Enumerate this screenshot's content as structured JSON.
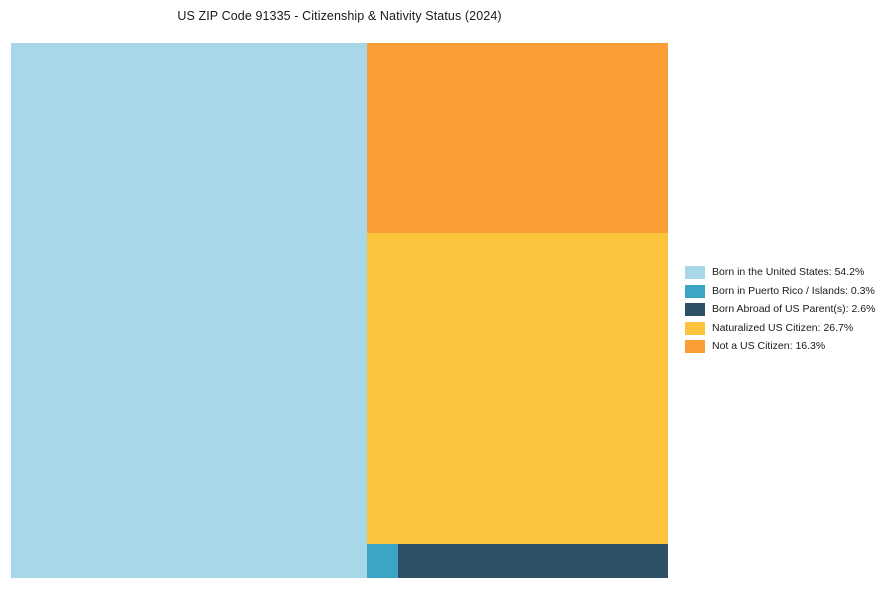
{
  "page": {
    "background": "#ffffff"
  },
  "chart_data": {
    "type": "treemap",
    "title": "US ZIP Code 91335 - Citizenship & Nativity Status (2024)",
    "legend_position": "right",
    "unit": "%",
    "segments": [
      {
        "label": "Born in the United States",
        "value": 54.2,
        "color": "#A9D7EA",
        "legend_label": "Born in the United States: 54.2%"
      },
      {
        "label": "Born in Puerto Rico / Islands",
        "value": 0.3,
        "color": "#3BA6C3",
        "legend_label": "Born in Puerto Rico / Islands: 0.3%"
      },
      {
        "label": "Born Abroad of US Parent(s)",
        "value": 2.6,
        "color": "#2E5168",
        "legend_label": "Born Abroad of US Parent(s): 2.6%"
      },
      {
        "label": "Naturalized US Citizen",
        "value": 26.7,
        "color": "#FCC43C",
        "legend_label": "Naturalized US Citizen: 26.7%"
      },
      {
        "label": "Not a US Citizen",
        "value": 16.3,
        "color": "#FA9D37",
        "legend_label": "Not a US Citizen: 16.3%"
      }
    ],
    "layout": {
      "left_segment_index": 0,
      "right_column_top_index": 4,
      "right_column_middle_index": 3,
      "bottom_row_indices": [
        1,
        2
      ]
    }
  }
}
